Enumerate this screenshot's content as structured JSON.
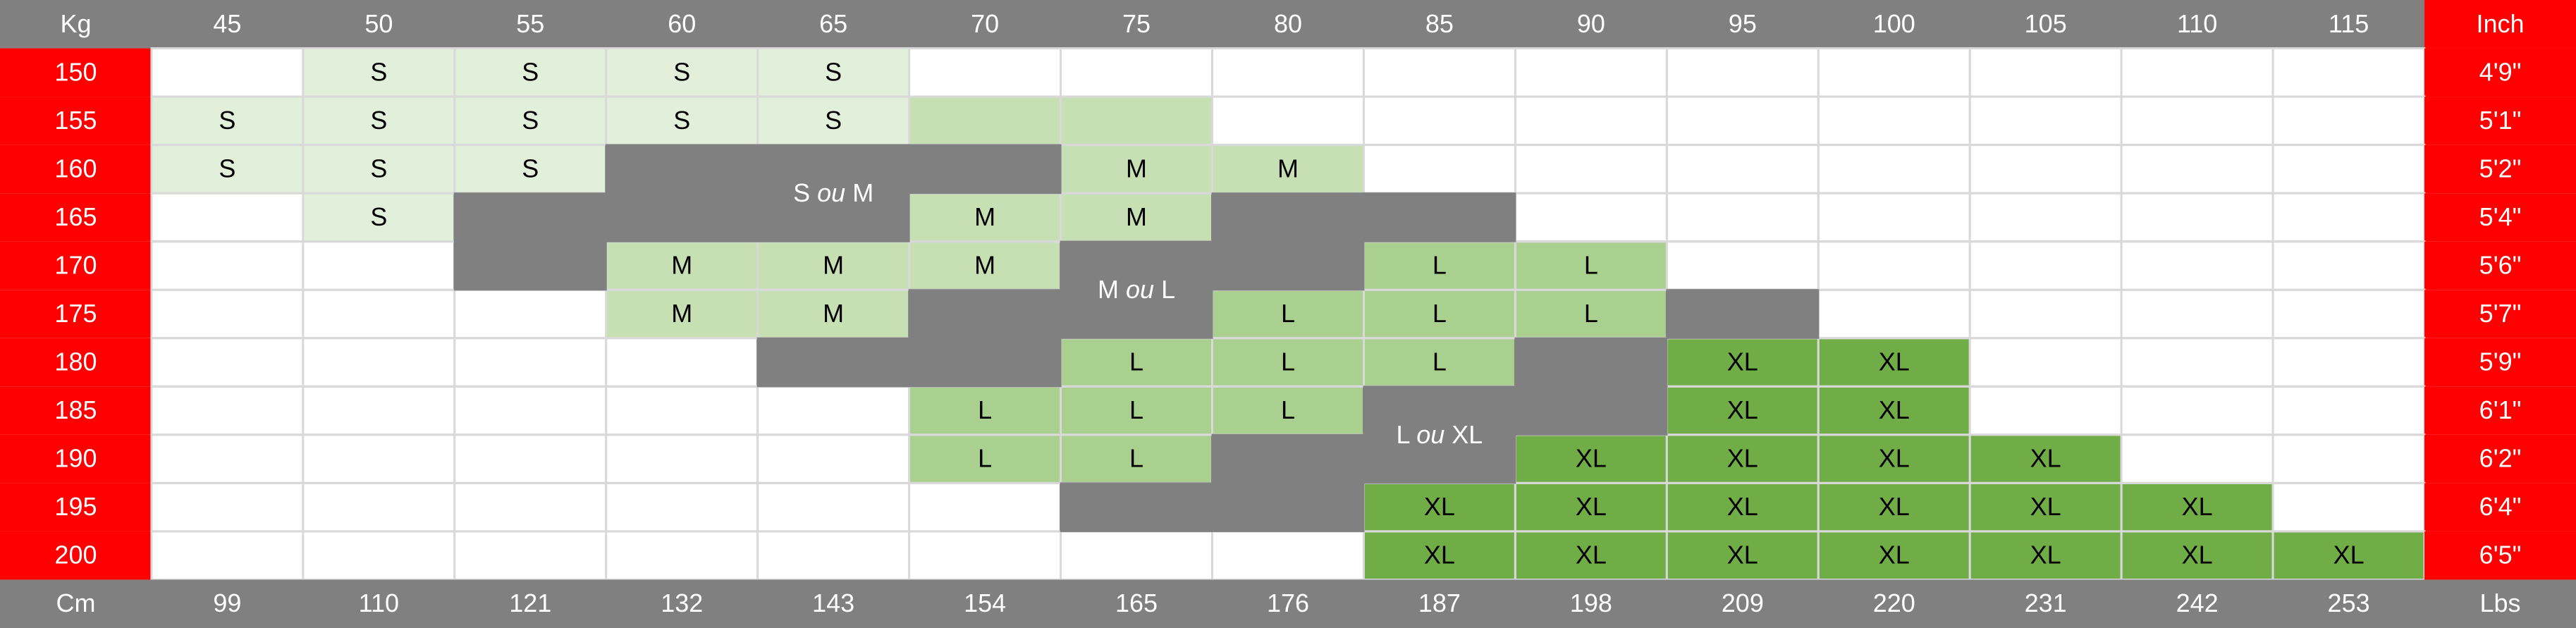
{
  "header": {
    "left": "Kg",
    "kg": [
      45,
      50,
      55,
      60,
      65,
      70,
      75,
      80,
      85,
      90,
      95,
      100,
      105,
      110,
      115
    ],
    "right": "Inch"
  },
  "footer": {
    "left": "Cm",
    "lbs": [
      99,
      110,
      121,
      132,
      143,
      154,
      165,
      176,
      187,
      198,
      209,
      220,
      231,
      242,
      253
    ],
    "right": "Lbs"
  },
  "rows": [
    {
      "cm": 150,
      "inch": "4'9\"",
      "cells": [
        null,
        "S",
        "S",
        "S",
        "S",
        null,
        null,
        null,
        null,
        null,
        null,
        null,
        null,
        null,
        null
      ]
    },
    {
      "cm": 155,
      "inch": "5'1\"",
      "cells": [
        "S",
        "S",
        "S",
        "S",
        "S",
        null,
        null,
        null,
        null,
        null,
        null,
        null,
        null,
        null,
        null
      ]
    },
    {
      "cm": 160,
      "inch": "5'2\"",
      "cells": [
        "S",
        "S",
        "S",
        null,
        null,
        null,
        "M",
        "M",
        null,
        null,
        null,
        null,
        null,
        null,
        null
      ]
    },
    {
      "cm": 165,
      "inch": "5'4\"",
      "cells": [
        null,
        "S",
        null,
        null,
        null,
        "M",
        "M",
        null,
        null,
        null,
        null,
        null,
        null,
        null,
        null
      ]
    },
    {
      "cm": 170,
      "inch": "5'6\"",
      "cells": [
        null,
        null,
        null,
        "M",
        "M",
        "M",
        null,
        null,
        "L",
        "L",
        null,
        null,
        null,
        null,
        null
      ]
    },
    {
      "cm": 175,
      "inch": "5'7\"",
      "cells": [
        null,
        null,
        null,
        "M",
        "M",
        null,
        null,
        "L",
        "L",
        "L",
        null,
        null,
        null,
        null,
        null
      ]
    },
    {
      "cm": 180,
      "inch": "5'9\"",
      "cells": [
        null,
        null,
        null,
        null,
        null,
        null,
        "L",
        "L",
        "L",
        null,
        "XL",
        "XL",
        null,
        null,
        null
      ]
    },
    {
      "cm": 185,
      "inch": "6'1\"",
      "cells": [
        null,
        null,
        null,
        null,
        null,
        "L",
        "L",
        "L",
        null,
        null,
        "XL",
        "XL",
        null,
        null,
        null
      ]
    },
    {
      "cm": 190,
      "inch": "6'2\"",
      "cells": [
        null,
        null,
        null,
        null,
        null,
        "L",
        "L",
        null,
        null,
        "XL",
        "XL",
        "XL",
        "XL",
        null,
        null
      ]
    },
    {
      "cm": 195,
      "inch": "6'4\"",
      "cells": [
        null,
        null,
        null,
        null,
        null,
        null,
        null,
        null,
        "XL",
        "XL",
        "XL",
        "XL",
        "XL",
        "XL",
        null
      ]
    },
    {
      "cm": 200,
      "inch": "6'5\"",
      "cells": [
        null,
        null,
        null,
        null,
        null,
        null,
        null,
        null,
        "XL",
        "XL",
        "XL",
        "XL",
        "XL",
        "XL",
        "XL"
      ]
    }
  ],
  "merged_labels": [
    [
      "S",
      "ou",
      "M"
    ],
    [
      "M",
      "ou",
      "L"
    ],
    [
      "L",
      "ou",
      "XL"
    ]
  ]
}
